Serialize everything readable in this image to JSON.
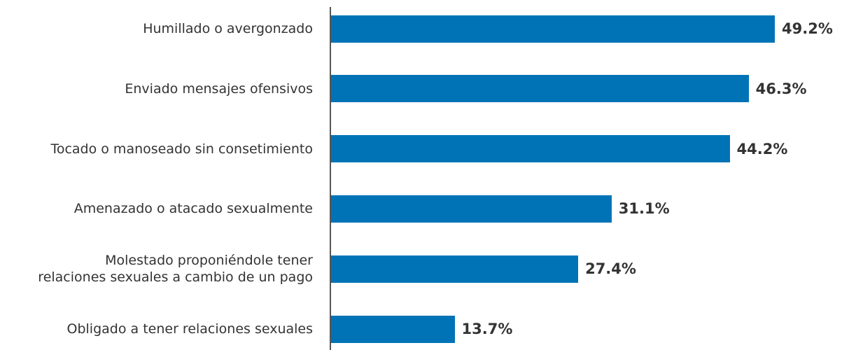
{
  "chart_data": {
    "type": "barh",
    "categories": [
      "Humillado o avergonzado",
      "Enviado mensajes ofensivos",
      "Tocado o manoseado sin consetimiento",
      "Amenazado o atacado sexualmente",
      "Molestado proponiéndole tener\nrelaciones sexuales a cambio de un pago",
      "Obligado a tener relaciones sexuales"
    ],
    "values": [
      49.2,
      46.3,
      44.2,
      31.1,
      27.4,
      13.7
    ],
    "value_labels": [
      "49.2%",
      "46.3%",
      "44.2%",
      "31.1%",
      "27.4%",
      "13.7%"
    ],
    "color": "#0073b6"
  }
}
